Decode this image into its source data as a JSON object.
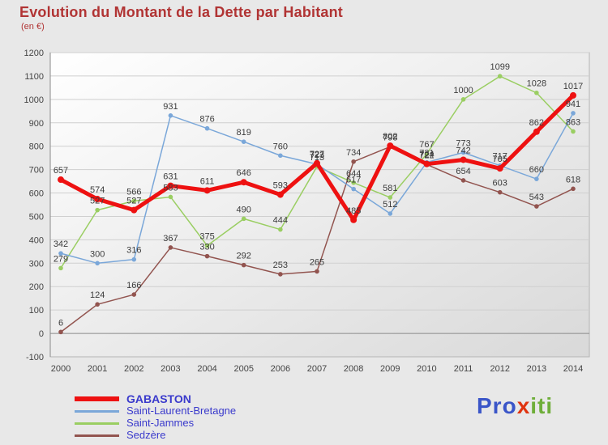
{
  "title": "Evolution du Montant de la Dette par Habitant",
  "subtitle": "(en €)",
  "chart_data": {
    "type": "line",
    "categories": [
      "2000",
      "2001",
      "2002",
      "2003",
      "2004",
      "2005",
      "2006",
      "2007",
      "2008",
      "2009",
      "2010",
      "2011",
      "2012",
      "2013",
      "2014"
    ],
    "series": [
      {
        "name": "GABASTON",
        "color": "#ee1111",
        "line_width": 5,
        "values": [
          657,
          574,
          527,
          631,
          611,
          646,
          593,
          727,
          485,
          802,
          724,
          742,
          705,
          862,
          1017
        ]
      },
      {
        "name": "Saint-Laurent-Bretagne",
        "color": "#7aa7d9",
        "line_width": 1.5,
        "values": [
          342,
          300,
          316,
          931,
          876,
          819,
          760,
          723,
          617,
          512,
          731,
          773,
          717,
          660,
          941
        ]
      },
      {
        "name": "Saint-Jammes",
        "color": "#9ace62",
        "line_width": 1.5,
        "values": [
          279,
          527,
          566,
          583,
          375,
          490,
          444,
          713,
          644,
          581,
          767,
          1000,
          1099,
          1028,
          863
        ]
      },
      {
        "name": "Sedzère",
        "color": "#92544f",
        "line_width": 1.5,
        "values": [
          6,
          124,
          166,
          367,
          330,
          292,
          253,
          265,
          734,
          798,
          722,
          654,
          603,
          543,
          618
        ]
      }
    ],
    "ylim": [
      -100,
      1200
    ],
    "ytick_step": 100,
    "grid": true,
    "legend_position": "bottom-left",
    "point_labels": true,
    "label_color": "#3c3c3c",
    "axis_color": "#8a8a8a",
    "grid_color": "#cfcfcf",
    "tick_label_color": "#444444"
  },
  "logo": {
    "parts": [
      {
        "text": "Pro",
        "color": "#3a55c8"
      },
      {
        "text": "x",
        "color": "#e03410"
      },
      {
        "text": "iti",
        "color": "#6fae3a"
      }
    ]
  }
}
